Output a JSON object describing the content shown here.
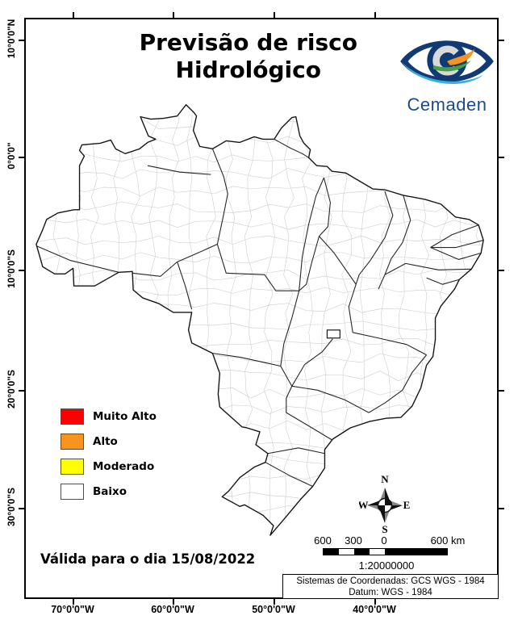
{
  "title": {
    "line1": "Previsão de risco",
    "line2": "Hidrológico"
  },
  "logo": {
    "name": "Cemaden"
  },
  "legend": {
    "items": [
      {
        "label": "Muito Alto",
        "color": "#FF0000"
      },
      {
        "label": "Alto",
        "color": "#F7941E"
      },
      {
        "label": "Moderado",
        "color": "#FFFF00"
      },
      {
        "label": "Baixo",
        "color": "#FFFFFF"
      }
    ]
  },
  "validity": {
    "text": "Válida para o dia 15/08/2022"
  },
  "compass": {
    "n": "N",
    "e": "E",
    "s": "S",
    "w": "W"
  },
  "scale_bar": {
    "tick_labels": [
      "600",
      "300",
      "0",
      "600 km"
    ],
    "ratio_text": "1:20000000"
  },
  "coordinate_system": {
    "line1": "Sistemas de Coordenadas: GCS WGS - 1984",
    "line2": "Datum: WGS - 1984"
  },
  "axes": {
    "latitude": [
      "10°0'0\"N",
      "0°0'0\"",
      "10°0'0\"S",
      "20°0'0\"S",
      "30°0'0\"S"
    ],
    "longitude": [
      "70°0'0\"W",
      "60°0'0\"W",
      "50°0'0\"W",
      "40°0'0\"W"
    ]
  }
}
